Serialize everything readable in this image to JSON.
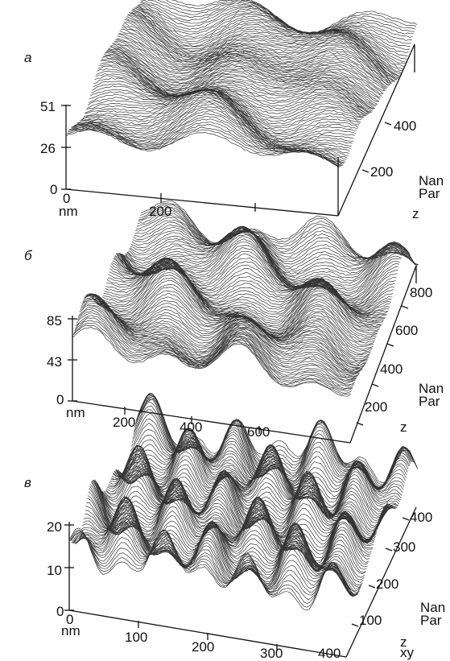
{
  "panels": [
    {
      "label": "а",
      "z_ticks": [
        "0",
        "26",
        "51"
      ],
      "x_ticks": [
        "0",
        "200"
      ],
      "x_unit": "nm",
      "y_ticks": [
        "200",
        "400"
      ],
      "side_labels": [
        "Nan",
        "Par",
        "z"
      ]
    },
    {
      "label": "б",
      "z_ticks": [
        "0",
        "43",
        "85"
      ],
      "x_ticks": [
        "200",
        "400",
        "600"
      ],
      "x_unit": "nm",
      "y_ticks": [
        "200",
        "400",
        "600",
        "800"
      ],
      "side_labels": [
        "Nan",
        "Par",
        "z"
      ]
    },
    {
      "label": "в",
      "z_ticks": [
        "0",
        "10",
        "20"
      ],
      "x_ticks": [
        "0",
        "100",
        "200",
        "300",
        "400"
      ],
      "x_unit": "nm",
      "y_ticks": [
        "100",
        "200",
        "300",
        "400"
      ],
      "side_labels": [
        "Nan",
        "Par",
        "z",
        "xy"
      ]
    }
  ]
}
